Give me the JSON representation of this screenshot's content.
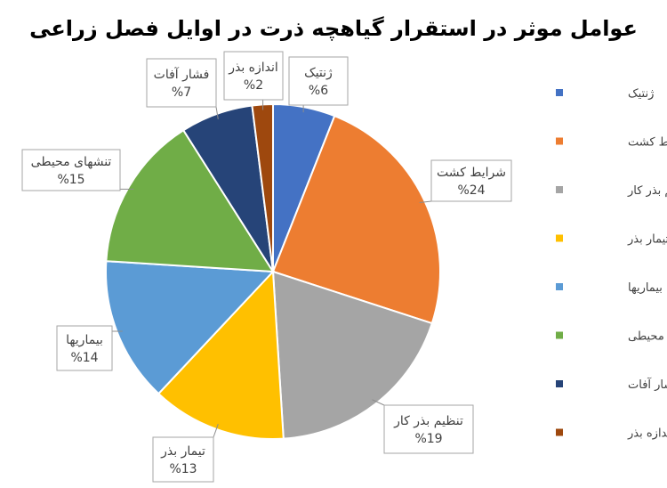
{
  "chart_data": {
    "type": "pie",
    "title": "عوامل موثر در استقرار گیاهچه ذرت در اوایل فصل زراعی",
    "categories": [
      "ژنتیک",
      "شرایط کشت",
      "تنظیم بذر کار",
      "تیمار بذر",
      "بیماریها",
      "تنشهای محیطی",
      "فشار آفات",
      "اندازه بذر"
    ],
    "values": [
      6,
      24,
      19,
      13,
      14,
      15,
      7,
      2
    ],
    "data_labels": [
      "%6",
      "%24",
      "%19",
      "%13",
      "%14",
      "%15",
      "%7",
      "%2"
    ],
    "colors": [
      "#4472C4",
      "#ED7D31",
      "#A5A5A5",
      "#FFC000",
      "#5B9BD5",
      "#70AD47",
      "#264478",
      "#9E480E"
    ],
    "legend_position": "right"
  }
}
